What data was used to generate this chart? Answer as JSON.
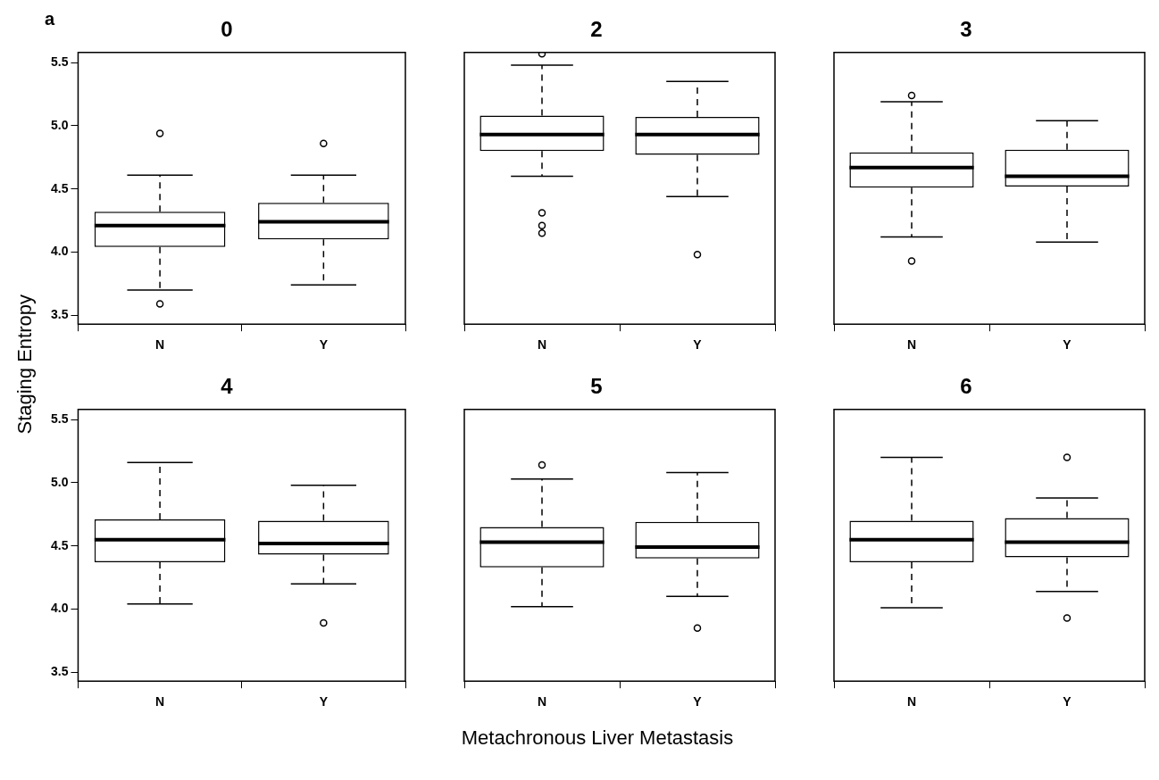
{
  "chart_data": [
    {
      "type": "box",
      "title": "0",
      "ylabel": "Staging Entropy",
      "annotations": [
        "a"
      ],
      "categories": [
        "N",
        "Y"
      ],
      "ylim": [
        3.43,
        5.58
      ],
      "yticks": [
        {
          "value": 3.5,
          "label": "3.5"
        },
        {
          "value": 4,
          "label": "4.0"
        },
        {
          "value": 4.5,
          "label": "4.5"
        },
        {
          "value": 5,
          "label": "5.0"
        },
        {
          "value": 5.5,
          "label": "5.5"
        }
      ],
      "boxes": [
        {
          "low": 3.7,
          "q1": 4.04,
          "median": 4.21,
          "q3": 4.32,
          "high": 4.61,
          "outliers": [
            4.94,
            3.59
          ]
        },
        {
          "low": 3.74,
          "q1": 4.1,
          "median": 4.24,
          "q3": 4.39,
          "high": 4.61,
          "outliers": [
            4.86
          ]
        }
      ]
    },
    {
      "type": "box",
      "title": "2",
      "categories": [
        "N",
        "Y"
      ],
      "ylim": [
        3.43,
        5.58
      ],
      "tick_labels": "x",
      "boxes": [
        {
          "low": 4.6,
          "q1": 4.8,
          "median": 4.93,
          "q3": 5.08,
          "high": 5.48,
          "outliers": [
            5.57,
            4.31,
            4.21,
            4.15
          ]
        },
        {
          "low": 4.44,
          "q1": 4.77,
          "median": 4.93,
          "q3": 5.07,
          "high": 5.35,
          "outliers": [
            3.98
          ]
        }
      ]
    },
    {
      "type": "box",
      "title": "3",
      "categories": [
        "N",
        "Y"
      ],
      "ylim": [
        3.43,
        5.58
      ],
      "tick_labels": "x",
      "boxes": [
        {
          "low": 4.12,
          "q1": 4.51,
          "median": 4.67,
          "q3": 4.79,
          "high": 5.19,
          "outliers": [
            5.24,
            3.93
          ]
        },
        {
          "low": 4.08,
          "q1": 4.52,
          "median": 4.6,
          "q3": 4.81,
          "high": 5.04
        }
      ]
    },
    {
      "type": "box",
      "title": "4",
      "categories": [
        "N",
        "Y"
      ],
      "ylim": [
        3.43,
        5.58
      ],
      "yticks": [
        {
          "value": 3.5,
          "label": "3.5"
        },
        {
          "value": 4,
          "label": "4.0"
        },
        {
          "value": 4.5,
          "label": "4.5"
        },
        {
          "value": 5,
          "label": "5.0"
        },
        {
          "value": 5.5,
          "label": "5.5"
        }
      ],
      "boxes": [
        {
          "low": 4.04,
          "q1": 4.37,
          "median": 4.55,
          "q3": 4.71,
          "high": 5.16
        },
        {
          "low": 4.2,
          "q1": 4.43,
          "median": 4.52,
          "q3": 4.7,
          "high": 4.98,
          "outliers": [
            3.89
          ]
        }
      ]
    },
    {
      "type": "box",
      "title": "5",
      "xlabel": "Metachronous Liver Metastasis",
      "categories": [
        "N",
        "Y"
      ],
      "ylim": [
        3.43,
        5.58
      ],
      "tick_labels": "x",
      "boxes": [
        {
          "low": 4.02,
          "q1": 4.33,
          "median": 4.53,
          "q3": 4.65,
          "high": 5.03,
          "outliers": [
            5.14
          ]
        },
        {
          "low": 4.1,
          "q1": 4.4,
          "median": 4.49,
          "q3": 4.69,
          "high": 5.08,
          "outliers": [
            3.85
          ]
        }
      ]
    },
    {
      "type": "box",
      "title": "6",
      "categories": [
        "N",
        "Y"
      ],
      "ylim": [
        3.43,
        5.58
      ],
      "tick_labels": "x",
      "boxes": [
        {
          "low": 4.01,
          "q1": 4.37,
          "median": 4.55,
          "q3": 4.7,
          "high": 5.2
        },
        {
          "low": 4.14,
          "q1": 4.41,
          "median": 4.53,
          "q3": 4.72,
          "high": 4.88,
          "outliers": [
            5.2,
            3.93
          ]
        }
      ]
    }
  ]
}
